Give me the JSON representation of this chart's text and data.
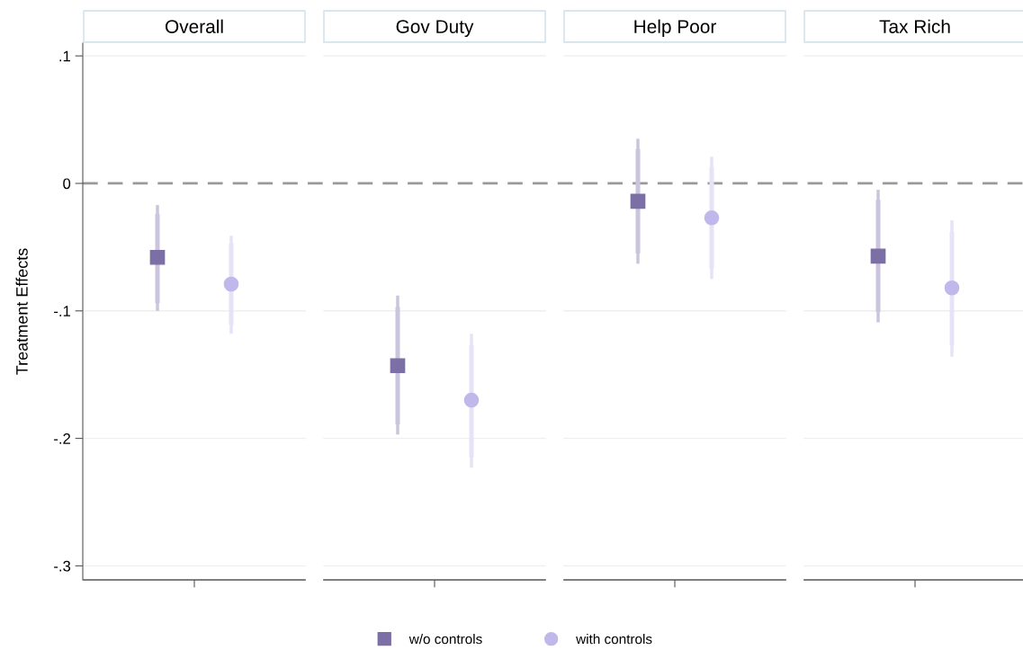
{
  "chart_data": {
    "type": "scatter",
    "ylabel": "Treatment Effects",
    "categories": [
      "Overall",
      "Gov Duty",
      "Help Poor",
      "Tax Rich"
    ],
    "ylim": [
      -0.311,
      0.11
    ],
    "yticks": [
      {
        "value": 0.1,
        "label": ".1"
      },
      0,
      {
        "value": -0.1,
        "label": "-.1"
      },
      {
        "value": -0.2,
        "label": "-.2"
      },
      {
        "value": -0.3,
        "label": "-.3"
      }
    ],
    "grid": "y",
    "legend": "bottom",
    "ref_lines": [
      {
        "axis": "y",
        "value": 0,
        "color": "#999999",
        "line_style": "dashed"
      }
    ],
    "series": [
      {
        "type": "bar",
        "color": "#cac5dd",
        "base": [
          -0.094,
          -0.189,
          -0.055,
          -0.101
        ],
        "values": [
          0.07,
          0.092,
          0.082,
          0.088
        ]
      },
      {
        "type": "bar",
        "color": "#e6e3f7",
        "base": [
          -0.111,
          -0.215,
          -0.067,
          -0.127
        ],
        "values": [
          0.064,
          0.088,
          0.08,
          0.089
        ]
      },
      {
        "name": "w/o controls",
        "color": "#7b6fa6",
        "marker": "square",
        "values": [
          -0.058,
          -0.143,
          -0.014,
          -0.057
        ],
        "errors": [
          [
            -0.1,
            -0.017
          ],
          [
            -0.197,
            -0.088
          ],
          [
            -0.063,
            0.035
          ],
          [
            -0.109,
            -0.005
          ]
        ]
      },
      {
        "name": "with controls",
        "color": "#c0b8ea",
        "marker": "circle",
        "values": [
          -0.079,
          -0.17,
          -0.027,
          -0.082
        ],
        "errors": [
          [
            -0.118,
            -0.041
          ],
          [
            -0.223,
            -0.118
          ],
          [
            -0.075,
            0.021
          ],
          [
            -0.136,
            -0.029
          ]
        ]
      }
    ]
  }
}
